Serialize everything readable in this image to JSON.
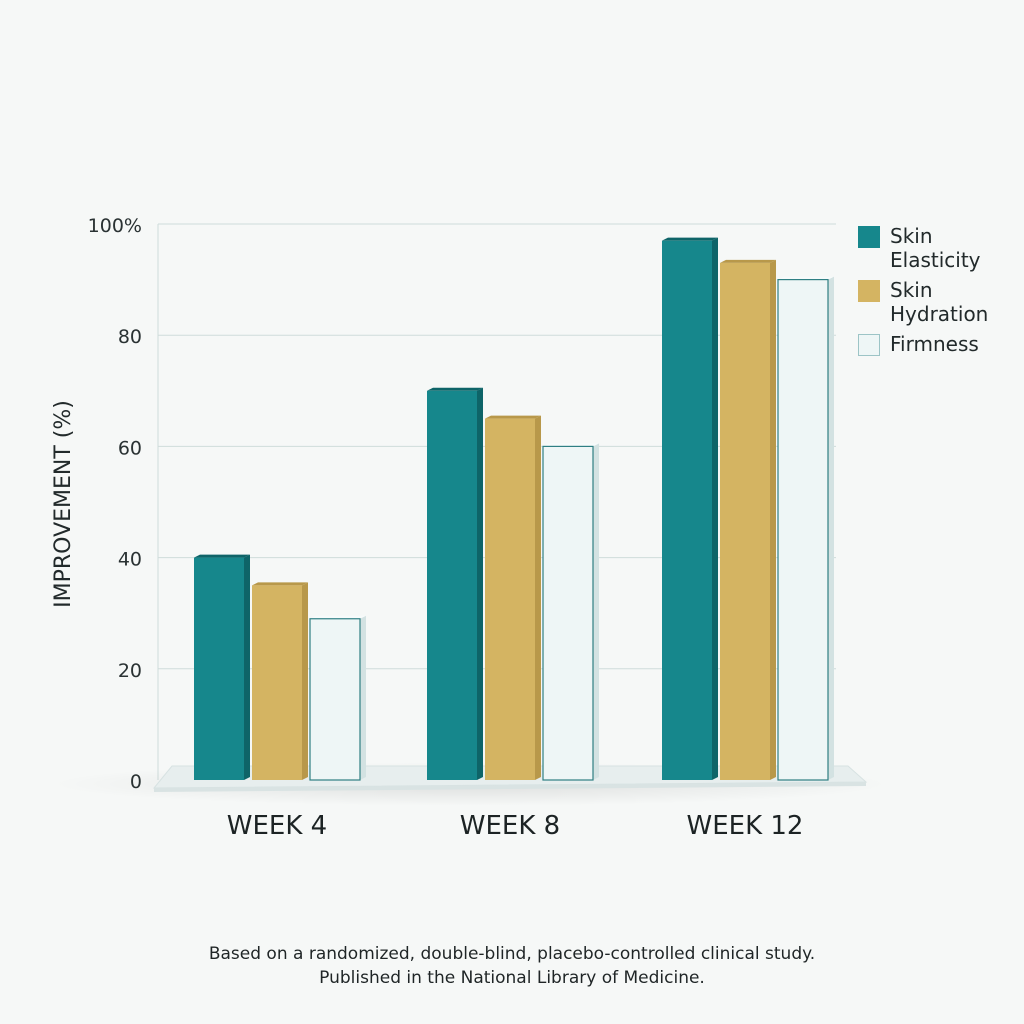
{
  "chart_data": {
    "type": "bar",
    "categories": [
      "WEEK 4",
      "WEEK 8",
      "WEEK 12"
    ],
    "series": [
      {
        "name": "Skin Elasticity",
        "values": [
          40,
          70,
          97
        ],
        "color": "#16878c"
      },
      {
        "name": "Skin Hydration",
        "values": [
          35,
          65,
          93
        ],
        "color": "#d4b462"
      },
      {
        "name": "Firmness",
        "values": [
          29,
          60,
          90
        ],
        "color": "#eef6f6"
      }
    ],
    "legend_lines": [
      [
        "Skin",
        "Elasticity"
      ],
      [
        "Skin",
        "Hydration"
      ],
      [
        "Firmness"
      ]
    ],
    "ylabel": "IMPROVEMENT (%)",
    "ylim": [
      0,
      100
    ],
    "yticks": [
      {
        "value": 0,
        "label": "0"
      },
      {
        "value": 20,
        "label": "20"
      },
      {
        "value": 40,
        "label": "40"
      },
      {
        "value": 60,
        "label": "60"
      },
      {
        "value": 80,
        "label": "80"
      },
      {
        "value": 100,
        "label": "100%"
      }
    ],
    "grid": true,
    "legend_position": "right"
  },
  "footnote": {
    "line1": "Based on a randomized, double-blind, placebo-controlled clinical study.",
    "line2": "Published in the National Library of Medicine."
  }
}
